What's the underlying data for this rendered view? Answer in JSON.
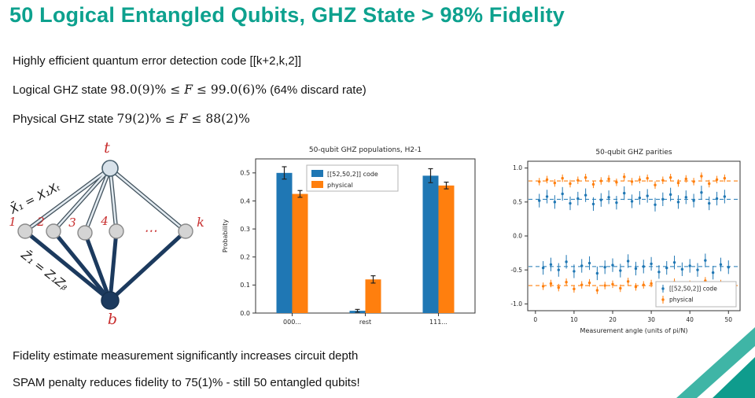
{
  "title": "50 Logical Entangled Qubits, GHZ State > 98% Fidelity",
  "bullets": {
    "line1": "Highly efficient quantum error detection code [[k+2,k,2]]",
    "line2_prefix": "Logical GHZ state ",
    "line2_math": {
      "lo": "98.0(9)% ≤ ",
      "f": "F",
      "hi": " ≤ 99.0(6)%"
    },
    "line2_suffix": "  (64% discard rate)",
    "line3_prefix": "Physical GHZ state ",
    "line3_math": {
      "lo": "79(2)% ≤ ",
      "f": "F",
      "hi": " ≤ 88(2)%"
    }
  },
  "footer": {
    "line1": "Fidelity estimate measurement significantly increases circuit depth",
    "line2": "SPAM penalty reduces fidelity to 75(1)% - still 50 entangled qubits!"
  },
  "diagram": {
    "top_label": "t",
    "bottom_label": "b",
    "node_labels": [
      "1",
      "2",
      "3",
      "4"
    ],
    "k_label": "k",
    "dots": "⋯",
    "eq_top": "X̄₁ = X₁Xₜ",
    "eq_bottom": "Z̄₁ = Z₁Zᵦ"
  },
  "colors": {
    "accent": "#0da18e",
    "blue": "#1f77b4",
    "orange": "#ff7f0e",
    "red": "#c82e2e",
    "navy": "#1c3a5e"
  },
  "chart_data": [
    {
      "type": "bar",
      "title": "50-qubit GHZ populations, H2-1",
      "ylabel": "Probability",
      "categories": [
        "000...",
        "rest",
        "111..."
      ],
      "ylim": [
        0,
        0.55
      ],
      "yticks": [
        0.0,
        0.1,
        0.2,
        0.3,
        0.4,
        0.5
      ],
      "grid": false,
      "legend_position": "upper center",
      "series": [
        {
          "name": "[[52,50,2]] code",
          "color": "#1f77b4",
          "values": [
            0.5,
            0.008,
            0.49
          ],
          "errors": [
            0.022,
            0.005,
            0.025
          ]
        },
        {
          "name": "physical",
          "color": "#ff7f0e",
          "values": [
            0.425,
            0.12,
            0.455
          ],
          "errors": [
            0.012,
            0.013,
            0.012
          ]
        }
      ]
    },
    {
      "type": "scatter",
      "title": "50-qubit GHZ parities",
      "xlabel": "Measurement angle (units of pi/N)",
      "xlim": [
        -2,
        53
      ],
      "ylim": [
        -1.1,
        1.1
      ],
      "xticks": [
        0,
        10,
        20,
        30,
        40,
        50
      ],
      "yticks": [
        1.0,
        0.5,
        0.0,
        -0.5,
        -1.0
      ],
      "grid": false,
      "legend_position": "lower right",
      "dashed_lines": [
        {
          "y": 0.81,
          "color": "#ff7f0e"
        },
        {
          "y": 0.54,
          "color": "#1f77b4"
        },
        {
          "y": -0.45,
          "color": "#1f77b4"
        },
        {
          "y": -0.73,
          "color": "#ff7f0e"
        }
      ],
      "x": [
        1,
        2,
        3,
        4,
        5,
        6,
        7,
        8,
        9,
        10,
        11,
        12,
        13,
        14,
        15,
        16,
        17,
        18,
        19,
        20,
        21,
        22,
        23,
        24,
        25,
        26,
        27,
        28,
        29,
        30,
        31,
        32,
        33,
        34,
        35,
        36,
        37,
        38,
        39,
        40,
        41,
        42,
        43,
        44,
        45,
        46,
        47,
        48,
        49,
        50
      ],
      "series": [
        {
          "name": "[[52,50,2]] code",
          "color": "#1f77b4",
          "err": 0.1,
          "y": [
            0.52,
            -0.47,
            0.58,
            -0.42,
            0.5,
            -0.5,
            0.62,
            -0.38,
            0.48,
            -0.52,
            0.55,
            -0.44,
            0.6,
            -0.4,
            0.47,
            -0.55,
            0.53,
            -0.46,
            0.57,
            -0.43,
            0.49,
            -0.51,
            0.63,
            -0.37,
            0.51,
            -0.48,
            0.56,
            -0.45,
            0.59,
            -0.41,
            0.46,
            -0.53,
            0.54,
            -0.47,
            0.61,
            -0.39,
            0.5,
            -0.49,
            0.57,
            -0.44,
            0.52,
            -0.5,
            0.64,
            -0.36,
            0.48,
            -0.54,
            0.55,
            -0.42,
            0.58,
            -0.46
          ]
        },
        {
          "name": "physical",
          "color": "#ff7f0e",
          "err": 0.055,
          "y": [
            0.8,
            -0.74,
            0.83,
            -0.7,
            0.78,
            -0.76,
            0.85,
            -0.68,
            0.77,
            -0.78,
            0.82,
            -0.72,
            0.86,
            -0.69,
            0.76,
            -0.8,
            0.81,
            -0.73,
            0.84,
            -0.71,
            0.79,
            -0.77,
            0.87,
            -0.67,
            0.8,
            -0.75,
            0.83,
            -0.72,
            0.85,
            -0.7,
            0.75,
            -0.79,
            0.82,
            -0.74,
            0.86,
            -0.68,
            0.78,
            -0.76,
            0.84,
            -0.71,
            0.8,
            -0.77,
            0.88,
            -0.66,
            0.77,
            -0.8,
            0.83,
            -0.7,
            0.85,
            -0.73
          ]
        }
      ]
    }
  ]
}
